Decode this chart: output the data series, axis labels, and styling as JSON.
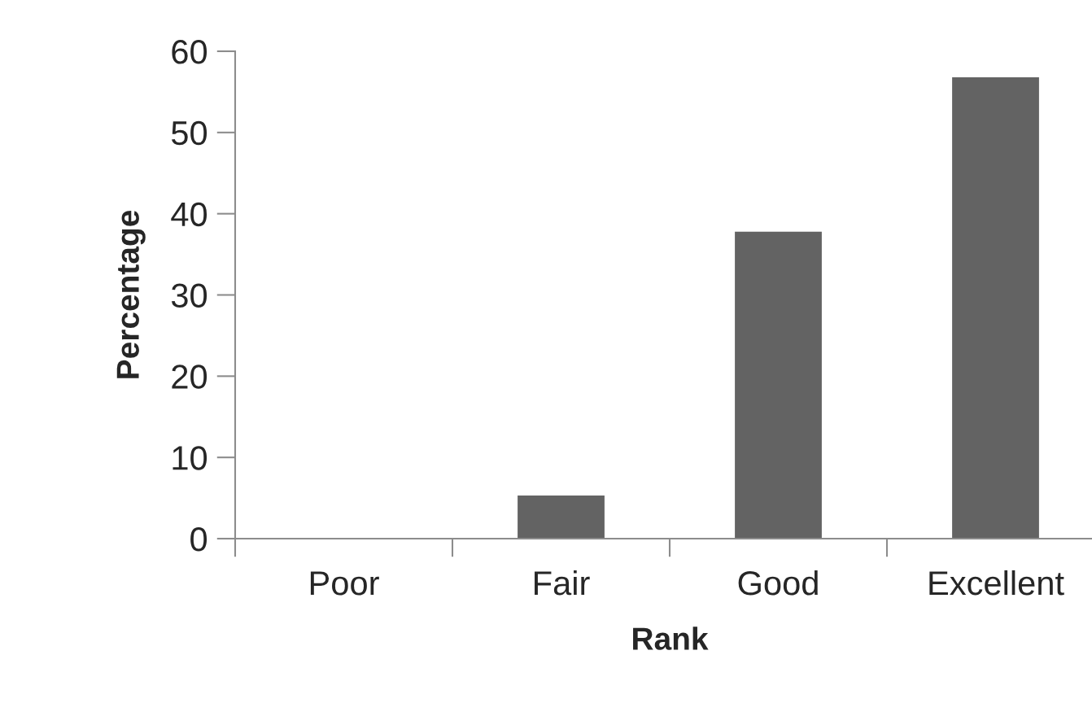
{
  "chart_data": {
    "type": "bar",
    "xlabel": "Rank",
    "ylabel": "Percentage",
    "categories": [
      "Poor",
      "Fair",
      "Good",
      "Excellent"
    ],
    "values": [
      0,
      5.3,
      37.8,
      56.8
    ],
    "color": "#636363",
    "ylim": [
      0,
      60
    ],
    "yticks": [
      0,
      10,
      20,
      30,
      40,
      50,
      60
    ],
    "grid": false,
    "legend": false
  }
}
